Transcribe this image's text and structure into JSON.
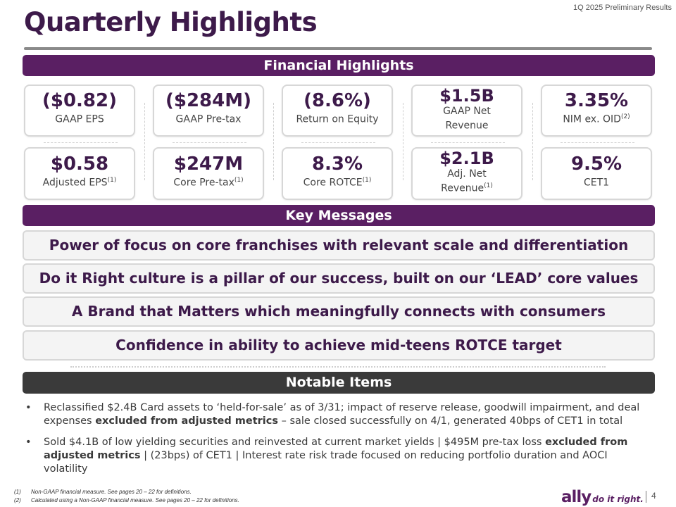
{
  "header": {
    "subtitle": "1Q 2025 Preliminary Results",
    "title": "Quarterly Highlights"
  },
  "financial_highlights": {
    "title": "Financial Highlights",
    "top_row": [
      {
        "value": "($0.82)",
        "label": "GAAP EPS",
        "footnote": ""
      },
      {
        "value": "($284M)",
        "label": "GAAP Pre-tax",
        "footnote": ""
      },
      {
        "value": "(8.6%)",
        "label": "Return on Equity",
        "footnote": ""
      },
      {
        "value": "$1.5B",
        "label": "GAAP Net",
        "label2": "Revenue",
        "footnote": ""
      },
      {
        "value": "3.35%",
        "label": "NIM ex. OID",
        "footnote": "(2)"
      }
    ],
    "bottom_row": [
      {
        "value": "$0.58",
        "label": "Adjusted EPS",
        "footnote": "(1)"
      },
      {
        "value": "$247M",
        "label": "Core Pre-tax",
        "footnote": "(1)"
      },
      {
        "value": "8.3%",
        "label": "Core ROTCE",
        "footnote": "(1)"
      },
      {
        "value": "$2.1B",
        "label": "Adj. Net",
        "label2": "Revenue",
        "footnote": "(1)"
      },
      {
        "value": "9.5%",
        "label": "CET1",
        "footnote": ""
      }
    ]
  },
  "key_messages": {
    "title": "Key Messages",
    "items": [
      "Power of focus on core franchises with relevant scale and differentiation",
      "Do it Right culture is a pillar of our success, built on our ‘LEAD’ core values",
      "A Brand that Matters which meaningfully connects with consumers",
      "Confidence in ability to achieve mid-teens ROTCE target"
    ]
  },
  "notable_items": {
    "title": "Notable Items",
    "bullet": "•",
    "items": [
      {
        "a": "Reclassified $2.4B Card assets to ‘held-for-sale’ as of 3/31; impact of reserve release, goodwill impairment, and deal expenses ",
        "b": "excluded from adjusted metrics",
        "c": " – sale closed successfully on 4/1, generated 40bps of CET1 in total"
      },
      {
        "a": "Sold $4.1B of low yielding securities and reinvested at current market yields | $495M pre-tax loss ",
        "b": "excluded from adjusted metrics",
        "c": " | (23bps) of CET1 | Interest rate risk trade focused on reducing portfolio duration and AOCI volatility"
      }
    ]
  },
  "footnotes": [
    {
      "num": "(1)",
      "text": "Non-GAAP financial measure. See pages 20 – 22 for definitions."
    },
    {
      "num": "(2)",
      "text": "Calculated using a Non-GAAP financial measure. See pages 20 – 22 for definitions."
    }
  ],
  "brand": {
    "name": "ally",
    "tagline": "do it right."
  },
  "page_number": "4",
  "colors": {
    "brand_purple": "#5a1f63",
    "title_purple": "#3d1a4a",
    "notable_band": "#3a3a3a"
  }
}
